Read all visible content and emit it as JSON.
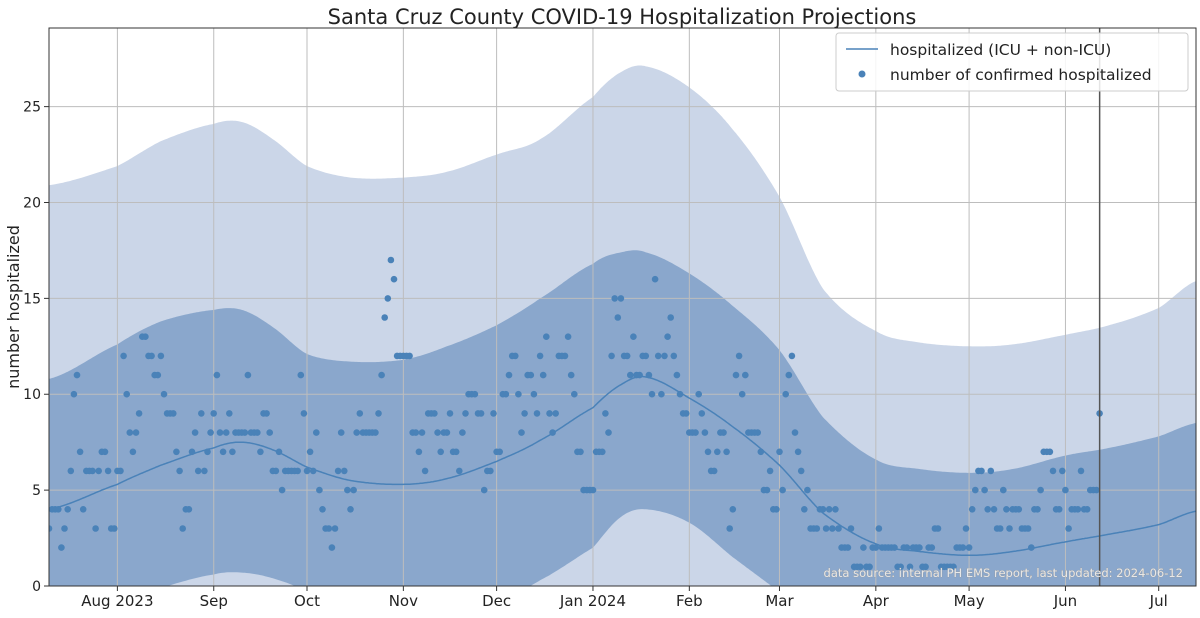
{
  "chart_data": {
    "type": "line",
    "title": "Santa Cruz County COVID-19 Hospitalization Projections",
    "xlabel": "",
    "ylabel": "number hospitalized",
    "xlim": [
      "2023-07-10",
      "2024-07-13"
    ],
    "ylim": [
      0,
      29.1
    ],
    "grid": true,
    "legend_position": "top-right",
    "annotation": "data source: internal PH EMS report, last updated: 2024-06-12",
    "last_updated_marker": "2024-06-12",
    "y_ticks": [
      0,
      5,
      10,
      15,
      20,
      25
    ],
    "x_ticks": [
      {
        "date": "2023-08-01",
        "label": "Aug 2023"
      },
      {
        "date": "2023-09-01",
        "label": "Sep"
      },
      {
        "date": "2023-10-01",
        "label": "Oct"
      },
      {
        "date": "2023-11-01",
        "label": "Nov"
      },
      {
        "date": "2023-12-01",
        "label": "Dec"
      },
      {
        "date": "2024-01-01",
        "label": "Jan 2024"
      },
      {
        "date": "2024-02-01",
        "label": "Feb"
      },
      {
        "date": "2024-03-01",
        "label": "Mar"
      },
      {
        "date": "2024-04-01",
        "label": "Apr"
      },
      {
        "date": "2024-05-01",
        "label": "May"
      },
      {
        "date": "2024-06-01",
        "label": "Jun"
      },
      {
        "date": "2024-07-01",
        "label": "Jul"
      }
    ],
    "colors": {
      "outer_band": "#cbd6e8",
      "inner_band": "#8aa7cc",
      "line": "#4a82b8",
      "points": "#4a82b8",
      "marker_line": "#555555"
    },
    "projection": {
      "dates": [
        "2023-07-10",
        "2023-08-01",
        "2023-08-15",
        "2023-09-01",
        "2023-09-10",
        "2023-09-20",
        "2023-10-01",
        "2023-10-15",
        "2023-11-01",
        "2023-11-15",
        "2023-12-01",
        "2023-12-15",
        "2024-01-01",
        "2024-01-10",
        "2024-01-18",
        "2024-02-01",
        "2024-02-15",
        "2024-03-01",
        "2024-03-15",
        "2024-04-01",
        "2024-04-15",
        "2024-05-01",
        "2024-05-15",
        "2024-06-01",
        "2024-06-15",
        "2024-07-01",
        "2024-07-13"
      ],
      "hospitalized": [
        4.0,
        5.3,
        6.3,
        7.2,
        7.5,
        7.1,
        6.2,
        5.5,
        5.3,
        5.6,
        6.5,
        7.6,
        9.3,
        10.5,
        10.9,
        9.8,
        8.3,
        6.3,
        3.8,
        2.2,
        1.8,
        1.6,
        1.8,
        2.3,
        2.7,
        3.2,
        3.9
      ],
      "inner_upper": [
        10.8,
        12.6,
        13.8,
        14.4,
        14.4,
        13.5,
        12.1,
        11.7,
        11.8,
        12.5,
        13.6,
        15.0,
        16.8,
        17.4,
        17.4,
        16.3,
        14.6,
        12.3,
        8.8,
        6.6,
        6.1,
        5.9,
        6.1,
        6.8,
        7.2,
        7.8,
        8.5
      ],
      "inner_lower": [
        -3,
        -1,
        -0.1,
        0.6,
        0.7,
        0.4,
        -0.3,
        -1.5,
        -2,
        -1.5,
        -0.8,
        0.3,
        2.0,
        3.6,
        4.0,
        3.3,
        1.5,
        -0.3,
        -2,
        -3,
        -3,
        -3,
        -3,
        -3,
        -3,
        -3,
        -3
      ],
      "outer_upper": [
        20.9,
        21.9,
        23.2,
        24.1,
        24.2,
        23.3,
        21.9,
        21.3,
        21.3,
        21.6,
        22.5,
        23.3,
        25.5,
        26.8,
        27.1,
        26.0,
        23.8,
        20.3,
        15.5,
        13.3,
        12.7,
        12.5,
        12.6,
        13.1,
        13.6,
        14.5,
        15.9
      ]
    },
    "series": [
      {
        "name": "hospitalized (ICU + non-ICU)",
        "type": "line"
      },
      {
        "name": "number of confirmed hospitalized",
        "type": "scatter"
      }
    ],
    "confirmed": [
      {
        "month": "2023-07",
        "from_day": 10,
        "values": [
          3,
          4,
          4,
          4,
          2,
          3,
          4,
          6,
          10,
          11,
          7,
          4,
          6,
          6,
          6,
          3,
          6,
          7,
          7,
          6,
          3,
          3
        ]
      },
      {
        "month": "2023-08",
        "from_day": 1,
        "values": [
          6,
          6,
          12,
          10,
          8,
          7,
          8,
          9,
          13,
          13,
          12,
          12,
          11,
          11,
          12,
          10,
          9,
          9,
          9,
          7,
          6,
          3,
          4,
          4,
          7,
          8,
          6,
          9,
          6,
          7,
          8
        ]
      },
      {
        "month": "2023-09",
        "from_day": 1,
        "values": [
          9,
          11,
          8,
          7,
          8,
          9,
          7,
          8,
          8,
          8,
          8,
          11,
          8,
          8,
          8,
          7,
          9,
          9,
          8,
          6,
          6,
          7,
          5,
          6,
          6,
          6,
          6,
          6,
          11,
          9
        ]
      },
      {
        "month": "2023-10",
        "from_day": 1,
        "values": [
          6,
          7,
          6,
          8,
          5,
          4,
          3,
          3,
          2,
          3,
          6,
          8,
          6,
          5,
          4,
          5,
          8,
          9,
          8,
          8,
          8,
          8,
          8,
          9,
          11,
          14,
          15,
          17,
          16,
          12,
          12
        ]
      },
      {
        "month": "2023-11",
        "from_day": 1,
        "values": [
          12,
          12,
          12,
          8,
          8,
          7,
          8,
          6,
          9,
          9,
          9,
          8,
          7,
          8,
          8,
          9,
          7,
          7,
          6,
          8,
          9,
          10,
          10,
          10,
          9,
          9,
          5,
          6,
          6,
          9
        ]
      },
      {
        "month": "2023-12",
        "from_day": 1,
        "values": [
          7,
          7,
          10,
          10,
          11,
          12,
          12,
          10,
          8,
          9,
          11,
          11,
          10,
          9,
          12,
          11,
          13,
          9,
          8,
          9,
          12,
          12,
          12,
          13,
          11,
          10,
          7,
          7,
          5,
          5,
          5
        ]
      },
      {
        "month": "2024-01",
        "from_day": 1,
        "values": [
          5,
          7,
          7,
          7,
          9,
          8,
          12,
          15,
          14,
          15,
          12,
          12,
          11,
          13,
          11,
          11,
          12,
          12,
          11,
          10,
          16,
          12,
          10,
          12,
          13,
          14,
          12,
          11,
          10,
          9,
          9
        ]
      },
      {
        "month": "2024-02",
        "from_day": 1,
        "values": [
          8,
          8,
          8,
          10,
          9,
          8,
          7,
          6,
          6,
          7,
          8,
          8,
          7,
          3,
          4,
          11,
          12,
          10,
          11,
          8,
          8,
          8,
          8,
          7,
          5,
          5,
          6,
          4,
          4
        ]
      },
      {
        "month": "2024-03",
        "from_day": 1,
        "values": [
          7,
          5,
          10,
          11,
          12,
          8,
          7,
          6,
          4,
          5,
          3,
          3,
          3,
          4,
          4,
          3,
          4,
          3,
          4,
          3,
          2,
          2,
          2,
          3,
          1,
          1,
          1,
          2,
          1,
          1,
          2
        ]
      },
      {
        "month": "2024-04",
        "from_day": 1,
        "values": [
          2,
          3,
          2,
          2,
          2,
          2,
          2,
          1,
          1,
          2,
          2,
          1,
          2,
          2,
          2,
          1,
          1,
          2,
          2,
          3,
          3,
          1,
          1,
          1,
          1,
          1,
          2,
          2,
          2,
          3
        ]
      },
      {
        "month": "2024-05",
        "from_day": 1,
        "values": [
          2,
          4,
          5,
          6,
          6,
          5,
          4,
          6,
          4,
          3,
          3,
          5,
          4,
          3,
          4,
          4,
          4,
          3,
          3,
          3,
          2,
          4,
          4,
          5,
          7,
          7,
          7,
          6,
          4,
          4,
          6
        ]
      },
      {
        "month": "2024-06",
        "from_day": 1,
        "values": [
          5,
          3,
          4,
          4,
          4,
          6,
          4,
          4,
          5,
          5,
          5,
          9
        ]
      }
    ]
  }
}
